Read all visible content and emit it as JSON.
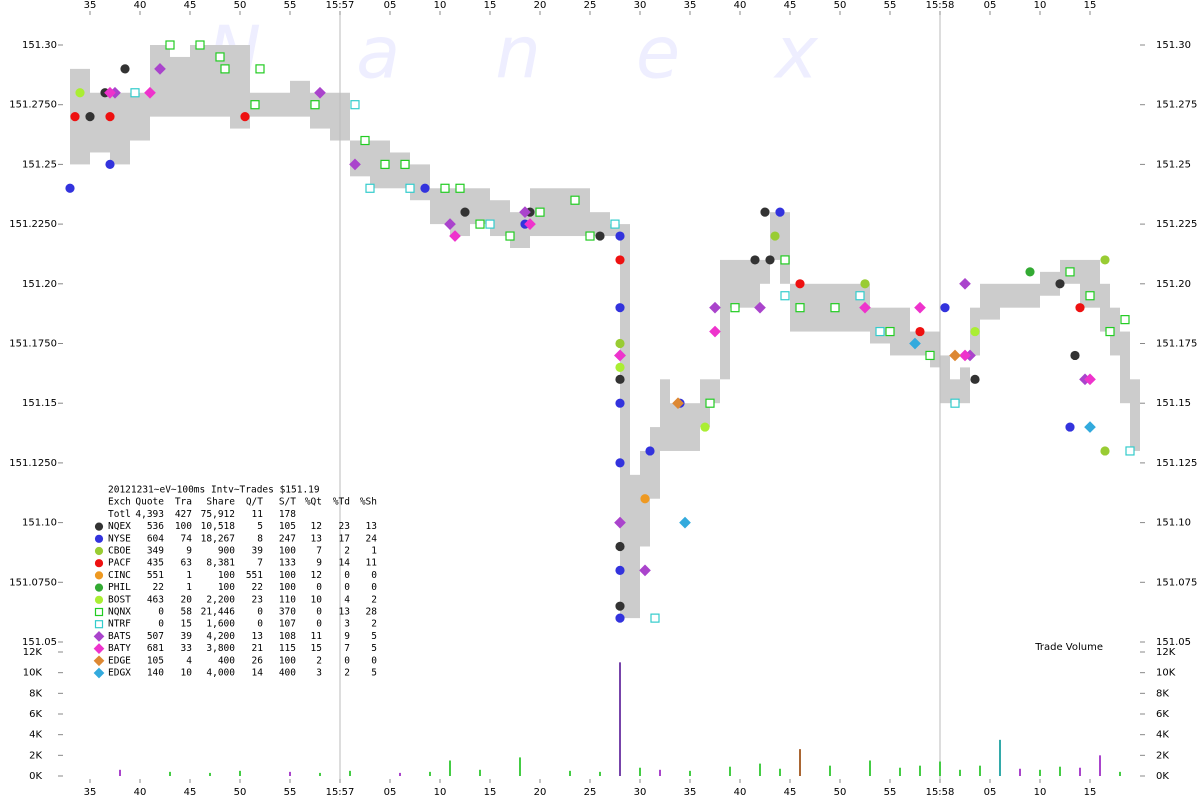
{
  "chart_data": {
    "type": "scatter",
    "watermark": "Nanex",
    "xlim": [
      32,
      140
    ],
    "xticks": [
      35,
      40,
      45,
      50,
      55,
      {
        "value": 60,
        "label": "15:57"
      },
      {
        "value": 65,
        "label": "05"
      },
      {
        "value": 70,
        "label": "10"
      },
      {
        "value": 75,
        "label": "15"
      },
      {
        "value": 80,
        "label": "20"
      },
      {
        "value": 85,
        "label": "25"
      },
      {
        "value": 90,
        "label": "30"
      },
      {
        "value": 95,
        "label": "35"
      },
      {
        "value": 100,
        "label": "40"
      },
      {
        "value": 105,
        "label": "45"
      },
      {
        "value": 110,
        "label": "50"
      },
      {
        "value": 115,
        "label": "55"
      },
      {
        "value": 120,
        "label": "15:58"
      },
      {
        "value": 125,
        "label": "05"
      },
      {
        "value": 130,
        "label": "10"
      },
      {
        "value": 135,
        "label": "15"
      }
    ],
    "ylim": [
      151.05,
      151.3
    ],
    "yticks": [
      {
        "value": 151.3,
        "label": "151.30"
      },
      {
        "value": 151.275,
        "label": "151.2750"
      },
      151.25,
      {
        "value": 151.225,
        "label": "151.2250"
      },
      {
        "value": 151.2,
        "label": "151.20"
      },
      {
        "value": 151.175,
        "label": "151.1750"
      },
      151.15,
      {
        "value": 151.125,
        "label": "151.1250"
      },
      {
        "value": 151.1,
        "label": "151.10"
      },
      {
        "value": 151.075,
        "label": "151.0750"
      },
      151.05
    ],
    "y2lim": [
      151.05,
      151.3
    ],
    "y2ticks": [
      {
        "value": 151.3,
        "label": "151.30"
      },
      151.275,
      151.25,
      151.225,
      {
        "value": 151.2,
        "label": "151.20"
      },
      151.175,
      151.15,
      151.125,
      {
        "value": 151.1,
        "label": "151.10"
      },
      151.075,
      151.05
    ],
    "quote_band": {
      "color": "#cccccc",
      "x": [
        33,
        35,
        37,
        39,
        41,
        43,
        45,
        47,
        49,
        51,
        53,
        55,
        57,
        59,
        61,
        63,
        65,
        67,
        69,
        71,
        73,
        75,
        77,
        79,
        81,
        83,
        85,
        87,
        88,
        89,
        90,
        91,
        92,
        93,
        94,
        95,
        96,
        97,
        98,
        99,
        100,
        101,
        102,
        103,
        104,
        105,
        107,
        109,
        111,
        113,
        115,
        117,
        119,
        120,
        121,
        122,
        123,
        124,
        126,
        128,
        130,
        132,
        134,
        136,
        137,
        138,
        139
      ],
      "low": [
        151.25,
        151.255,
        151.25,
        151.26,
        151.27,
        151.27,
        151.27,
        151.27,
        151.265,
        151.27,
        151.27,
        151.27,
        151.265,
        151.26,
        151.245,
        151.24,
        151.24,
        151.235,
        151.225,
        151.22,
        151.225,
        151.22,
        151.215,
        151.22,
        151.22,
        151.22,
        151.22,
        151.22,
        151.06,
        151.06,
        151.09,
        151.11,
        151.13,
        151.13,
        151.13,
        151.13,
        151.14,
        151.15,
        151.16,
        151.19,
        151.19,
        151.19,
        151.2,
        151.21,
        151.2,
        151.18,
        151.18,
        151.18,
        151.18,
        151.175,
        151.17,
        151.17,
        151.165,
        151.15,
        151.15,
        151.15,
        151.17,
        151.185,
        151.19,
        151.19,
        151.195,
        151.2,
        151.19,
        151.18,
        151.17,
        151.15,
        151.13
      ],
      "high": [
        151.29,
        151.28,
        151.28,
        151.28,
        151.3,
        151.295,
        151.3,
        151.3,
        151.3,
        151.28,
        151.28,
        151.285,
        151.28,
        151.28,
        151.26,
        151.26,
        151.255,
        151.25,
        151.24,
        151.24,
        151.24,
        151.235,
        151.23,
        151.24,
        151.24,
        151.24,
        151.23,
        151.225,
        151.225,
        151.12,
        151.13,
        151.14,
        151.16,
        151.15,
        151.15,
        151.15,
        151.16,
        151.16,
        151.21,
        151.21,
        151.21,
        151.21,
        151.21,
        151.23,
        151.23,
        151.2,
        151.2,
        151.2,
        151.2,
        151.19,
        151.19,
        151.18,
        151.18,
        151.17,
        151.16,
        151.165,
        151.19,
        151.2,
        151.2,
        151.2,
        151.205,
        151.21,
        151.21,
        151.2,
        151.19,
        151.18,
        151.16
      ]
    },
    "series": [
      {
        "name": "NQEX",
        "color": "#333333",
        "shape": "circle",
        "style": "filled",
        "stats": [
          "536",
          "100",
          "10,518",
          "5",
          "105",
          "12",
          "23",
          "13"
        ],
        "x": [
          35,
          36.5,
          38.5,
          72.5,
          79,
          86,
          88,
          88,
          88,
          101.5,
          102.5,
          103,
          123.5,
          132,
          133.5
        ],
        "values": [
          151.27,
          151.28,
          151.29,
          151.23,
          151.23,
          151.22,
          151.16,
          151.09,
          151.065,
          151.21,
          151.23,
          151.21,
          151.16,
          151.2,
          151.17
        ]
      },
      {
        "name": "NYSE",
        "color": "#3333dd",
        "shape": "circle",
        "style": "filled",
        "stats": [
          "604",
          "74",
          "18,267",
          "8",
          "247",
          "13",
          "17",
          "24"
        ],
        "x": [
          33,
          37,
          68.5,
          78.5,
          88,
          88,
          88,
          88,
          88,
          88,
          91,
          94,
          104,
          120.5,
          133
        ],
        "values": [
          151.24,
          151.25,
          151.24,
          151.225,
          151.22,
          151.19,
          151.15,
          151.125,
          151.08,
          151.06,
          151.13,
          151.15,
          151.23,
          151.19,
          151.14
        ]
      },
      {
        "name": "CBOE",
        "color": "#99cc33",
        "shape": "circle",
        "style": "filled",
        "stats": [
          "349",
          "9",
          "900",
          "39",
          "100",
          "7",
          "2",
          "1"
        ],
        "x": [
          88,
          103.5,
          112.5,
          136.5,
          136.5
        ],
        "values": [
          151.175,
          151.22,
          151.2,
          151.21,
          151.13
        ]
      },
      {
        "name": "PACF",
        "color": "#ee1111",
        "shape": "circle",
        "style": "filled",
        "stats": [
          "435",
          "63",
          "8,381",
          "7",
          "133",
          "9",
          "14",
          "11"
        ],
        "x": [
          33.5,
          37,
          50.5,
          88,
          106,
          118,
          134
        ],
        "values": [
          151.27,
          151.27,
          151.27,
          151.21,
          151.2,
          151.18,
          151.19
        ]
      },
      {
        "name": "CINC",
        "color": "#ee9922",
        "shape": "circle",
        "style": "filled",
        "stats": [
          "551",
          "1",
          "100",
          "551",
          "100",
          "12",
          "0",
          "0"
        ],
        "x": [
          90.5
        ],
        "values": [
          151.11
        ]
      },
      {
        "name": "PHIL",
        "color": "#33aa33",
        "shape": "circle",
        "style": "filled",
        "stats": [
          "22",
          "1",
          "100",
          "22",
          "100",
          "0",
          "0",
          "0"
        ],
        "x": [
          129
        ],
        "values": [
          151.205
        ]
      },
      {
        "name": "BOST",
        "color": "#aaee33",
        "shape": "circle",
        "style": "filled",
        "stats": [
          "463",
          "20",
          "2,200",
          "23",
          "110",
          "10",
          "4",
          "2"
        ],
        "x": [
          34,
          88,
          96.5,
          123.5
        ],
        "values": [
          151.28,
          151.165,
          151.14,
          151.18
        ]
      },
      {
        "name": "NQNX",
        "color": "#22cc22",
        "shape": "square",
        "style": "hollow",
        "stats": [
          "0",
          "58",
          "21,446",
          "0",
          "370",
          "0",
          "13",
          "28"
        ],
        "x": [
          43,
          46,
          48,
          48.5,
          51.5,
          52,
          57.5,
          62.5,
          64.5,
          66.5,
          70.5,
          72,
          74,
          77,
          80,
          83.5,
          85,
          97,
          99.5,
          104.5,
          106,
          109.5,
          115,
          119,
          133,
          135,
          137,
          138.5
        ],
        "values": [
          151.3,
          151.3,
          151.295,
          151.29,
          151.275,
          151.29,
          151.275,
          151.26,
          151.25,
          151.25,
          151.24,
          151.24,
          151.225,
          151.22,
          151.23,
          151.235,
          151.22,
          151.15,
          151.19,
          151.21,
          151.19,
          151.19,
          151.18,
          151.17,
          151.205,
          151.195,
          151.18,
          151.185
        ]
      },
      {
        "name": "NTRF",
        "color": "#33cccc",
        "shape": "square",
        "style": "hollow",
        "stats": [
          "0",
          "15",
          "1,600",
          "0",
          "107",
          "0",
          "3",
          "2"
        ],
        "x": [
          39.5,
          61.5,
          63,
          67,
          75,
          87.5,
          91.5,
          104.5,
          112,
          114,
          121.5,
          139
        ],
        "values": [
          151.28,
          151.275,
          151.24,
          151.24,
          151.225,
          151.225,
          151.06,
          151.195,
          151.195,
          151.18,
          151.15,
          151.13
        ]
      },
      {
        "name": "BATS",
        "color": "#aa44cc",
        "shape": "diamond",
        "style": "filled",
        "stats": [
          "507",
          "39",
          "4,200",
          "13",
          "108",
          "11",
          "9",
          "5"
        ],
        "x": [
          37.5,
          42,
          58,
          61.5,
          71,
          78.5,
          88,
          88,
          90.5,
          97.5,
          102,
          122.5,
          123,
          134.5
        ],
        "values": [
          151.28,
          151.29,
          151.28,
          151.25,
          151.225,
          151.23,
          151.17,
          151.1,
          151.08,
          151.19,
          151.19,
          151.2,
          151.17,
          151.16
        ]
      },
      {
        "name": "BATY",
        "color": "#ee33cc",
        "shape": "diamond",
        "style": "filled",
        "stats": [
          "681",
          "33",
          "3,800",
          "21",
          "115",
          "15",
          "7",
          "5"
        ],
        "x": [
          37,
          41,
          71.5,
          79,
          88,
          97.5,
          112.5,
          118,
          122.5,
          135
        ],
        "values": [
          151.28,
          151.28,
          151.22,
          151.225,
          151.17,
          151.18,
          151.19,
          151.19,
          151.17,
          151.16
        ]
      },
      {
        "name": "EDGE",
        "color": "#dd8833",
        "shape": "diamond",
        "style": "filled",
        "stats": [
          "105",
          "4",
          "400",
          "26",
          "100",
          "2",
          "0",
          "0"
        ],
        "x": [
          93.8,
          121.5
        ],
        "values": [
          151.15,
          151.17
        ]
      },
      {
        "name": "EDGX",
        "color": "#33aadd",
        "shape": "diamond",
        "style": "filled",
        "stats": [
          "140",
          "10",
          "4,000",
          "14",
          "400",
          "3",
          "2",
          "5"
        ],
        "x": [
          94.5,
          117.5,
          135
        ],
        "values": [
          151.1,
          151.175,
          151.14
        ]
      }
    ],
    "legend_table": {
      "title": "20121231~eV~100ms Intv~Trades $151.19",
      "columns": [
        "Exch",
        "Quote",
        "Tra",
        "Share",
        "Q/T",
        "S/T",
        "%Qt",
        "%Td",
        "%Sh"
      ],
      "total": {
        "name": "Totl",
        "values": [
          "4,393",
          "427",
          "75,912",
          "11",
          "178"
        ]
      }
    },
    "volume": {
      "label": "Trade Volume",
      "ylim": [
        0,
        12000
      ],
      "yticks": [
        {
          "value": 0,
          "label": "0K"
        },
        {
          "value": 2000,
          "label": "2K"
        },
        {
          "value": 4000,
          "label": "4K"
        },
        {
          "value": 6000,
          "label": "6K"
        },
        {
          "value": 8000,
          "label": "8K"
        },
        {
          "value": 10000,
          "label": "10K"
        },
        {
          "value": 12000,
          "label": "12K"
        }
      ],
      "x": [
        38,
        43,
        47,
        50,
        55,
        58,
        61,
        66,
        69,
        71,
        74,
        78,
        83,
        86,
        88,
        90,
        92,
        95,
        99,
        102,
        104,
        106,
        109,
        113,
        116,
        118,
        120,
        122,
        124,
        126,
        128,
        130,
        132,
        134,
        136,
        138
      ],
      "values": [
        600,
        400,
        300,
        500,
        400,
        300,
        500,
        300,
        400,
        1500,
        600,
        1800,
        500,
        400,
        11000,
        800,
        600,
        500,
        900,
        1200,
        700,
        2600,
        1000,
        1500,
        800,
        1000,
        1400,
        600,
        1000,
        3500,
        700,
        600,
        900,
        800,
        2000,
        400
      ],
      "colors": [
        "#aa44cc",
        "#44cc44",
        "#44cc44",
        "#44cc44",
        "#aa44cc",
        "#44cc44",
        "#44cc44",
        "#aa44cc",
        "#44cc44",
        "#44cc44",
        "#44cc44",
        "#44cc44",
        "#44cc44",
        "#44cc44",
        "#7744aa",
        "#44cc44",
        "#aa44cc",
        "#44cc44",
        "#44cc44",
        "#44cc44",
        "#44cc44",
        "#aa6633",
        "#44cc44",
        "#44cc44",
        "#44cc44",
        "#44cc44",
        "#44cc44",
        "#44cc44",
        "#44cc44",
        "#33aaaa",
        "#aa44cc",
        "#44cc44",
        "#44cc44",
        "#aa44cc",
        "#aa44cc",
        "#44cc44"
      ]
    }
  }
}
